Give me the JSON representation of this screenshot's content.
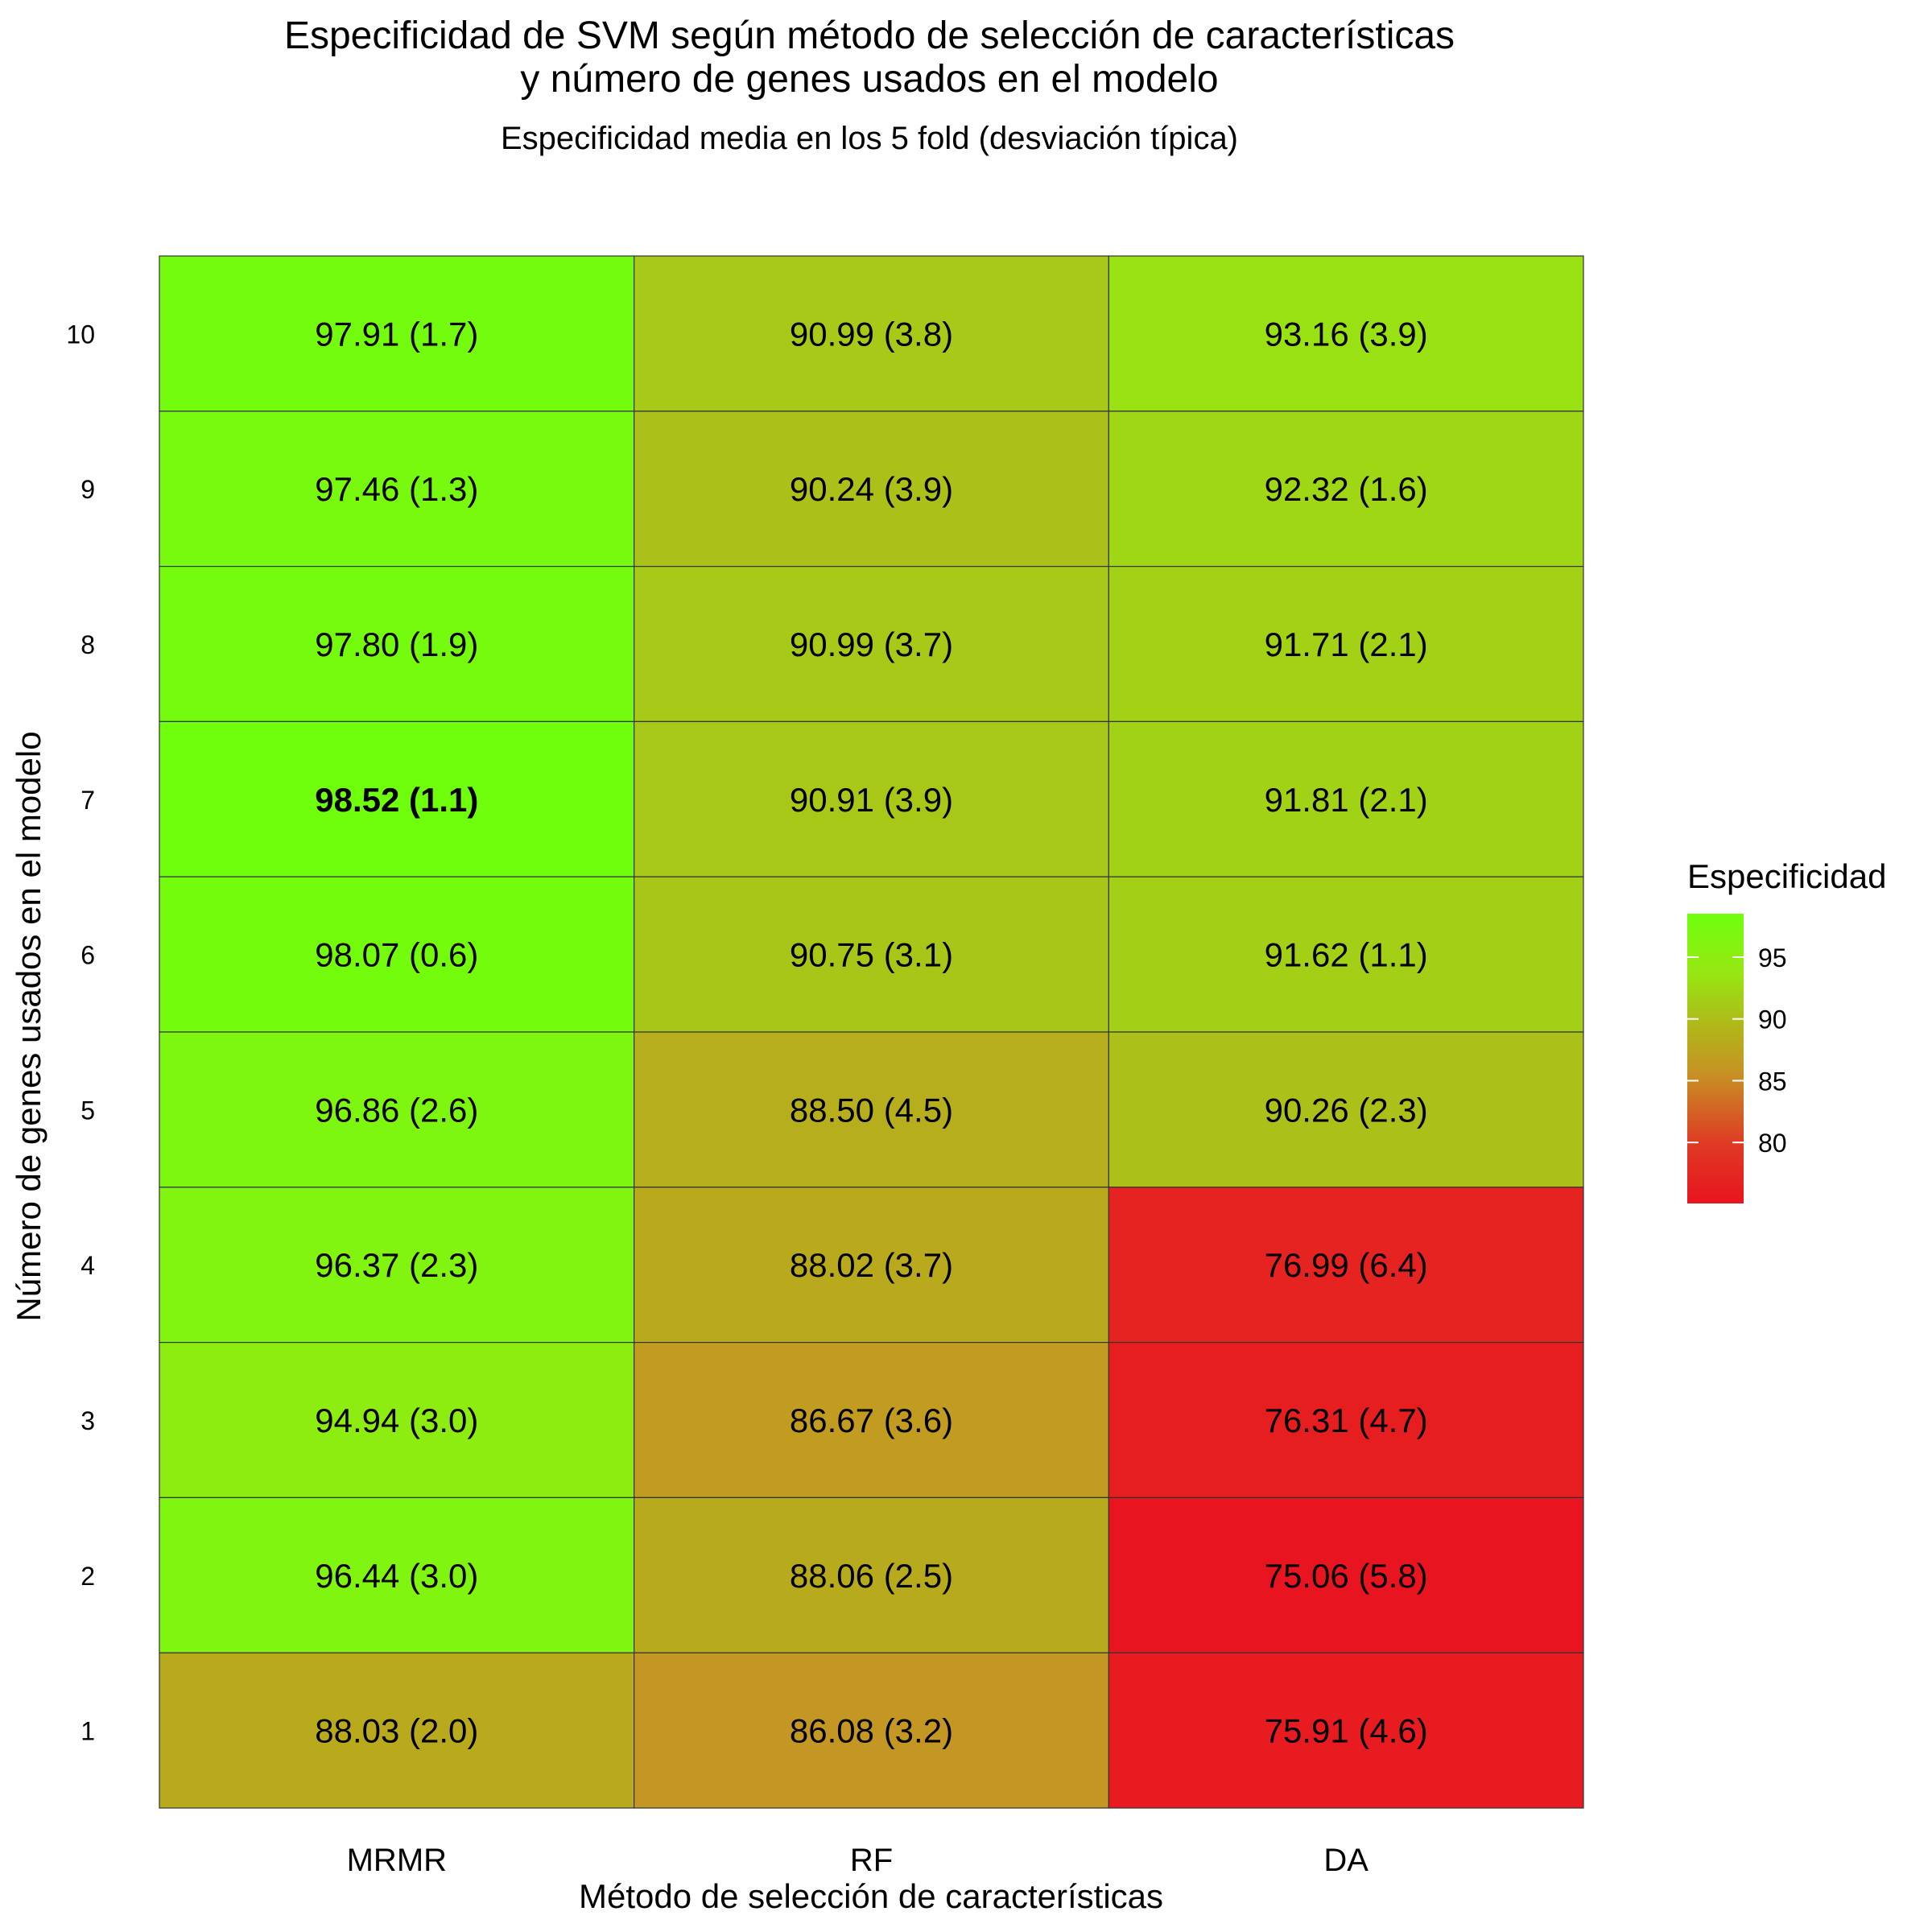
{
  "chart_data": {
    "type": "heatmap",
    "title_line1": "Especificidad de SVM según método de selección de características",
    "title_line2": "y número de genes usados en el modelo",
    "subtitle": "Especificidad media en los 5 fold (desviación típica)",
    "xlabel": "Método de selección de características",
    "ylabel": "Número de genes usados en el modelo",
    "x_categories": [
      "MRMR",
      "RF",
      "DA"
    ],
    "y_categories": [
      "1",
      "2",
      "3",
      "4",
      "5",
      "6",
      "7",
      "8",
      "9",
      "10"
    ],
    "cells": [
      {
        "x": "MRMR",
        "y": "10",
        "value": 97.91,
        "sd": 1.7,
        "label": "97.91 (1.7)"
      },
      {
        "x": "RF",
        "y": "10",
        "value": 90.99,
        "sd": 3.8,
        "label": "90.99 (3.8)"
      },
      {
        "x": "DA",
        "y": "10",
        "value": 93.16,
        "sd": 3.9,
        "label": "93.16 (3.9)"
      },
      {
        "x": "MRMR",
        "y": "9",
        "value": 97.46,
        "sd": 1.3,
        "label": "97.46 (1.3)"
      },
      {
        "x": "RF",
        "y": "9",
        "value": 90.24,
        "sd": 3.9,
        "label": "90.24 (3.9)"
      },
      {
        "x": "DA",
        "y": "9",
        "value": 92.32,
        "sd": 1.6,
        "label": "92.32 (1.6)"
      },
      {
        "x": "MRMR",
        "y": "8",
        "value": 97.8,
        "sd": 1.9,
        "label": "97.80 (1.9)"
      },
      {
        "x": "RF",
        "y": "8",
        "value": 90.99,
        "sd": 3.7,
        "label": "90.99 (3.7)"
      },
      {
        "x": "DA",
        "y": "8",
        "value": 91.71,
        "sd": 2.1,
        "label": "91.71 (2.1)"
      },
      {
        "x": "MRMR",
        "y": "7",
        "value": 98.52,
        "sd": 1.1,
        "label": "98.52 (1.1)",
        "bold": true
      },
      {
        "x": "RF",
        "y": "7",
        "value": 90.91,
        "sd": 3.9,
        "label": "90.91 (3.9)"
      },
      {
        "x": "DA",
        "y": "7",
        "value": 91.81,
        "sd": 2.1,
        "label": "91.81 (2.1)"
      },
      {
        "x": "MRMR",
        "y": "6",
        "value": 98.07,
        "sd": 0.6,
        "label": "98.07 (0.6)"
      },
      {
        "x": "RF",
        "y": "6",
        "value": 90.75,
        "sd": 3.1,
        "label": "90.75 (3.1)"
      },
      {
        "x": "DA",
        "y": "6",
        "value": 91.62,
        "sd": 1.1,
        "label": "91.62 (1.1)"
      },
      {
        "x": "MRMR",
        "y": "5",
        "value": 96.86,
        "sd": 2.6,
        "label": "96.86 (2.6)"
      },
      {
        "x": "RF",
        "y": "5",
        "value": 88.5,
        "sd": 4.5,
        "label": "88.50 (4.5)"
      },
      {
        "x": "DA",
        "y": "5",
        "value": 90.26,
        "sd": 2.3,
        "label": "90.26 (2.3)"
      },
      {
        "x": "MRMR",
        "y": "4",
        "value": 96.37,
        "sd": 2.3,
        "label": "96.37 (2.3)"
      },
      {
        "x": "RF",
        "y": "4",
        "value": 88.02,
        "sd": 3.7,
        "label": "88.02 (3.7)"
      },
      {
        "x": "DA",
        "y": "4",
        "value": 76.99,
        "sd": 6.4,
        "label": "76.99 (6.4)"
      },
      {
        "x": "MRMR",
        "y": "3",
        "value": 94.94,
        "sd": 3.0,
        "label": "94.94 (3.0)"
      },
      {
        "x": "RF",
        "y": "3",
        "value": 86.67,
        "sd": 3.6,
        "label": "86.67 (3.6)"
      },
      {
        "x": "DA",
        "y": "3",
        "value": 76.31,
        "sd": 4.7,
        "label": "76.31 (4.7)"
      },
      {
        "x": "MRMR",
        "y": "2",
        "value": 96.44,
        "sd": 3.0,
        "label": "96.44 (3.0)"
      },
      {
        "x": "RF",
        "y": "2",
        "value": 88.06,
        "sd": 2.5,
        "label": "88.06 (2.5)"
      },
      {
        "x": "DA",
        "y": "2",
        "value": 75.06,
        "sd": 5.8,
        "label": "75.06 (5.8)"
      },
      {
        "x": "MRMR",
        "y": "1",
        "value": 88.03,
        "sd": 2.0,
        "label": "88.03 (2.0)"
      },
      {
        "x": "RF",
        "y": "1",
        "value": 86.08,
        "sd": 3.2,
        "label": "86.08 (3.2)"
      },
      {
        "x": "DA",
        "y": "1",
        "value": 75.91,
        "sd": 4.6,
        "label": "75.91 (4.6)"
      }
    ],
    "legend": {
      "title": "Especificidad",
      "ticks": [
        80,
        85,
        90,
        95
      ],
      "placement": "right",
      "range": [
        75.06,
        98.52
      ],
      "color_low": "#e8141f",
      "color_high": "#6fff0d"
    },
    "grid": false
  }
}
